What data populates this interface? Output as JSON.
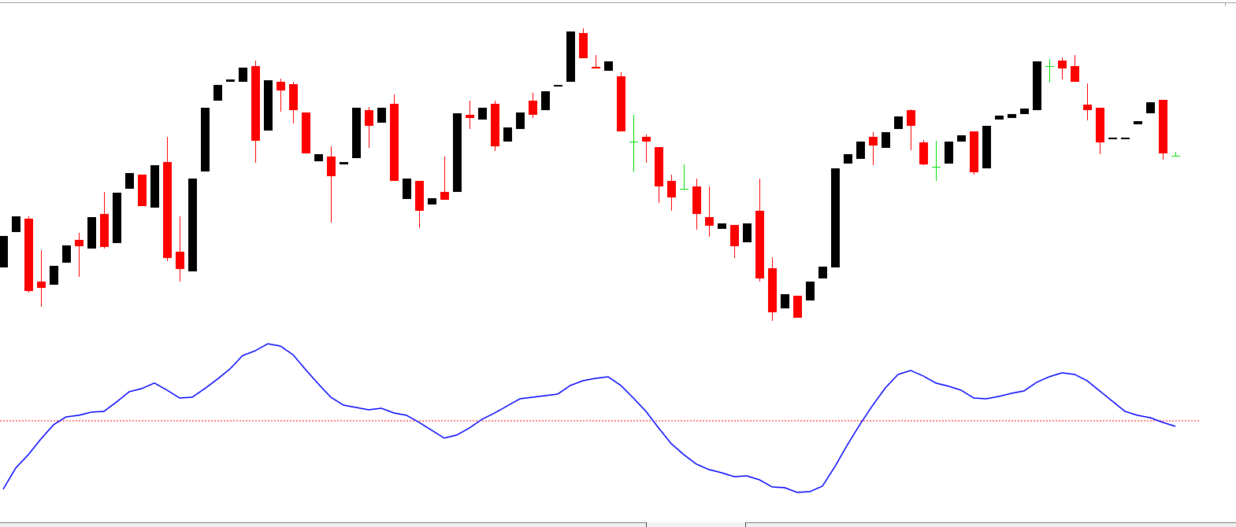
{
  "chart_data": [
    {
      "type": "candlestick",
      "open": [
        80,
        125,
        142,
        62,
        58,
        86,
        115,
        104,
        148,
        111,
        180,
        198,
        156,
        214,
        100,
        75,
        202,
        292,
        316,
        316,
        336,
        254,
        316,
        313,
        277,
        215,
        221,
        211,
        219,
        280,
        264,
        288,
        167,
        190,
        160,
        176,
        176,
        274,
        268,
        288,
        240,
        256,
        292,
        280,
        310,
        316,
        378,
        335,
        330,
        323,
        240,
        246,
        233,
        190,
        180,
        183,
        144,
        129,
        134,
        112,
        152,
        79,
        28,
        44,
        38,
        66,
        80,
        212,
        218,
        246,
        232,
        256,
        280,
        239,
        208,
        212,
        240,
        253,
        206,
        268,
        270,
        275,
        280,
        336,
        343,
        336,
        287,
        283,
        243,
        243,
        262,
        276,
        293,
        222
      ],
      "high": [
        120,
        145,
        145,
        102,
        82,
        108,
        124,
        144,
        176,
        175,
        200,
        198,
        210,
        246,
        145,
        193,
        283,
        312,
        319,
        334,
        343,
        318,
        320,
        316,
        277,
        224,
        234,
        214,
        283,
        284,
        283,
        300,
        193,
        190,
        168,
        221,
        276,
        292,
        283,
        292,
        258,
        277,
        302,
        304,
        312,
        380,
        384,
        350,
        342,
        328,
        274,
        249,
        233,
        198,
        211,
        193,
        183,
        136,
        134,
        136,
        193,
        93,
        46,
        44,
        62,
        81,
        206,
        224,
        240,
        252,
        252,
        272,
        281,
        242,
        241,
        240,
        248,
        253,
        260,
        273,
        275,
        282,
        342,
        345,
        347,
        350,
        314,
        283,
        245,
        245,
        266,
        290,
        293,
        227
      ],
      "low": [
        80,
        125,
        48,
        30,
        58,
        86,
        68,
        104,
        104,
        111,
        180,
        158,
        156,
        88,
        62,
        75,
        202,
        292,
        316,
        316,
        213,
        254,
        278,
        263,
        225,
        215,
        137,
        211,
        219,
        232,
        264,
        190,
        167,
        130,
        160,
        166,
        176,
        256,
        268,
        228,
        240,
        256,
        270,
        280,
        310,
        316,
        346,
        333,
        330,
        253,
        201,
        213,
        162,
        152,
        179,
        128,
        119,
        129,
        92,
        112,
        62,
        12,
        28,
        16,
        38,
        66,
        80,
        212,
        218,
        210,
        232,
        256,
        229,
        210,
        190,
        212,
        240,
        198,
        206,
        268,
        270,
        275,
        280,
        315,
        319,
        316,
        267,
        224,
        243,
        243,
        262,
        276,
        217,
        222
      ],
      "close": [
        120,
        145,
        50,
        54,
        82,
        108,
        107,
        144,
        106,
        175,
        200,
        158,
        210,
        92,
        78,
        193,
        283,
        312,
        319,
        334,
        241,
        318,
        305,
        280,
        225,
        224,
        196,
        214,
        283,
        260,
        283,
        190,
        193,
        152,
        168,
        166,
        276,
        270,
        283,
        234,
        258,
        277,
        274,
        304,
        312,
        380,
        346,
        333,
        342,
        253,
        240,
        240,
        183,
        169,
        180,
        148,
        133,
        136,
        107,
        136,
        66,
        23,
        46,
        16,
        62,
        81,
        206,
        224,
        240,
        235,
        252,
        272,
        260,
        211,
        208,
        240,
        248,
        201,
        260,
        273,
        275,
        282,
        342,
        336,
        333,
        316,
        280,
        239,
        245,
        245,
        266,
        290,
        225,
        222
      ],
      "up_color": "#000000",
      "down_color": "#ff0000",
      "doji_color": "#00e000",
      "ylim": [
        0,
        420
      ]
    },
    {
      "type": "line",
      "series": [
        {
          "color": "#0000ff",
          "values": [
            -87,
            -60,
            -43,
            -23,
            -5,
            5,
            7,
            11,
            12,
            24,
            37,
            41,
            48,
            39,
            29,
            30,
            41,
            53,
            66,
            83,
            89,
            98,
            95,
            84,
            65,
            47,
            30,
            20,
            17,
            14,
            16,
            10,
            7,
            -2,
            -12,
            -22,
            -18,
            -9,
            2,
            10,
            19,
            28,
            30,
            32,
            34,
            45,
            51,
            54,
            56,
            45,
            29,
            12,
            -9,
            -29,
            -43,
            -55,
            -62,
            -66,
            -71,
            -70,
            -75,
            -84,
            -85,
            -91,
            -90,
            -83,
            -58,
            -30,
            -4,
            20,
            42,
            59,
            64,
            57,
            48,
            44,
            39,
            29,
            28,
            31,
            35,
            38,
            49,
            56,
            61,
            59,
            51,
            38,
            25,
            12,
            7,
            4,
            -2,
            -7
          ]
        }
      ],
      "level": 0,
      "level_color": "#ff0000",
      "ylim": [
        -100,
        110
      ]
    }
  ]
}
